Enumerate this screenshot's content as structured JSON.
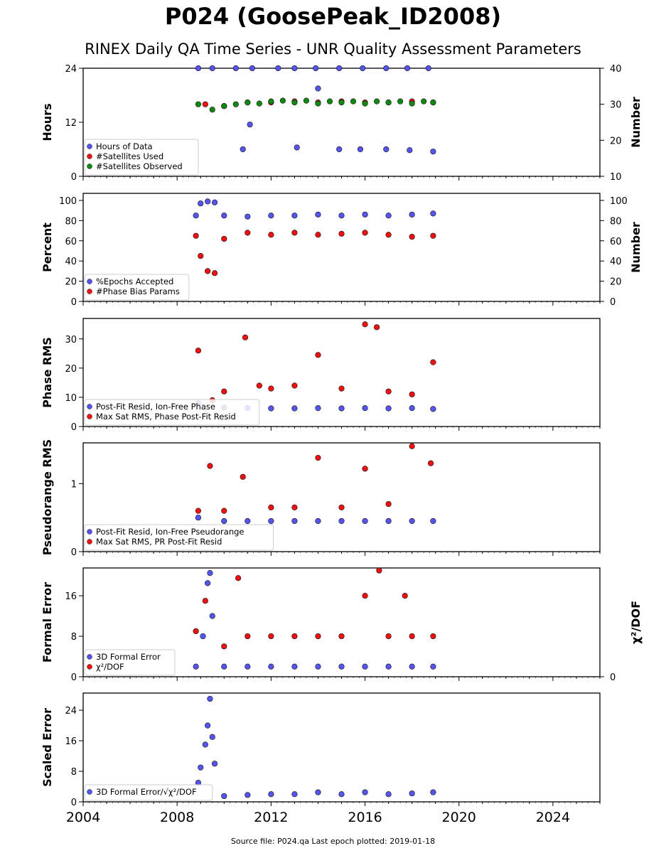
{
  "header": {
    "title": "P024 (GoosePeak_ID2008)",
    "subtitle": "RINEX Daily QA Time Series - UNR Quality Assessment Parameters"
  },
  "footer": {
    "text": "Source file: P024.qa Last epoch plotted: 2019-01-18"
  },
  "colors": {
    "blue": "#5555ee",
    "red": "#ee1111",
    "green": "#118811"
  },
  "chart_data": [
    {
      "type": "scatter",
      "ylabel": "Hours",
      "ylabel_right": "Number",
      "xlim": [
        2004,
        2026
      ],
      "ylim": [
        0,
        24
      ],
      "ylim_right": [
        10,
        40
      ],
      "yticks": [
        0,
        12,
        24
      ],
      "yticks_right": [
        10,
        20,
        30,
        40
      ],
      "legend": "lower-left",
      "series": [
        {
          "name": "Hours of Data",
          "color": "blue",
          "axis": "left",
          "x": [
            2008.9,
            2009.5,
            2010.5,
            2011.2,
            2012.3,
            2013.0,
            2013.9,
            2014.9,
            2015.9,
            2016.9,
            2017.8,
            2018.7
          ],
          "y": [
            24.0,
            24.0,
            24.0,
            24.0,
            24.0,
            24.0,
            24.0,
            24.0,
            24.0,
            24.0,
            24.0,
            24.0
          ],
          "lows": [
            {
              "x": 2010.8,
              "y": 6.0
            },
            {
              "x": 2011.1,
              "y": 11.5
            },
            {
              "x": 2013.1,
              "y": 6.4
            },
            {
              "x": 2014.0,
              "y": 19.5
            },
            {
              "x": 2014.9,
              "y": 6.0
            },
            {
              "x": 2015.8,
              "y": 6.0
            },
            {
              "x": 2016.9,
              "y": 6.0
            },
            {
              "x": 2017.9,
              "y": 5.8
            },
            {
              "x": 2018.9,
              "y": 5.5
            }
          ]
        },
        {
          "name": "#Satellites Used",
          "color": "red",
          "axis": "right",
          "x": [
            2009.2,
            2010.0,
            2011.0,
            2012.0,
            2013.0,
            2014.0,
            2015.0,
            2016.0,
            2017.0,
            2018.0,
            2018.9
          ],
          "y": [
            30.0,
            29.5,
            30.5,
            30.5,
            30.8,
            30.5,
            30.8,
            30.5,
            30.5,
            30.8,
            30.5
          ]
        },
        {
          "name": "#Satellites Observed",
          "color": "green",
          "axis": "right",
          "x": [
            2008.9,
            2009.5,
            2010.0,
            2010.5,
            2011.0,
            2011.5,
            2012.0,
            2012.5,
            2013.0,
            2013.5,
            2014.0,
            2014.5,
            2015.0,
            2015.5,
            2016.0,
            2016.5,
            2017.0,
            2017.5,
            2018.0,
            2018.5,
            2018.9
          ],
          "y": [
            30.0,
            28.5,
            29.5,
            30.0,
            30.5,
            30.2,
            30.8,
            31.0,
            30.5,
            31.0,
            30.2,
            30.8,
            30.5,
            30.8,
            30.2,
            30.8,
            30.5,
            30.8,
            30.2,
            30.8,
            30.5
          ]
        }
      ]
    },
    {
      "type": "scatter",
      "ylabel": "Percent",
      "ylabel_right": "Number",
      "xlim": [
        2004,
        2026
      ],
      "ylim": [
        0,
        107
      ],
      "ylim_right": [
        0,
        107
      ],
      "yticks": [
        0,
        20,
        40,
        60,
        80,
        100
      ],
      "yticks_right": [
        0,
        20,
        40,
        60,
        80,
        100
      ],
      "legend": "lower-left",
      "series": [
        {
          "name": "%Epochs Accepted",
          "color": "blue",
          "axis": "left",
          "x": [
            2008.8,
            2009.0,
            2009.3,
            2009.6,
            2010.0,
            2011.0,
            2012.0,
            2013.0,
            2014.0,
            2015.0,
            2016.0,
            2017.0,
            2018.0,
            2018.9
          ],
          "y": [
            85.0,
            97.0,
            99.0,
            98.0,
            85.0,
            84.0,
            85.0,
            85.0,
            86.0,
            85.0,
            86.0,
            85.0,
            86.0,
            87.0
          ]
        },
        {
          "name": "#Phase Bias Params",
          "color": "red",
          "axis": "right",
          "x": [
            2008.8,
            2009.0,
            2009.3,
            2009.6,
            2010.0,
            2011.0,
            2012.0,
            2013.0,
            2014.0,
            2015.0,
            2016.0,
            2017.0,
            2018.0,
            2018.9
          ],
          "y": [
            65.0,
            45.0,
            30.0,
            28.0,
            62.0,
            68.0,
            66.0,
            68.0,
            66.0,
            67.0,
            68.0,
            66.0,
            64.0,
            65.0
          ]
        }
      ]
    },
    {
      "type": "scatter",
      "ylabel": "Phase RMS",
      "xlim": [
        2004,
        2026
      ],
      "ylim": [
        0,
        37
      ],
      "yticks": [
        0,
        10,
        20,
        30
      ],
      "legend": "lower-left",
      "series": [
        {
          "name": "Post-Fit Resid, Ion-Free Phase",
          "color": "blue",
          "x": [
            2008.9,
            2010.0,
            2011.0,
            2012.0,
            2013.0,
            2014.0,
            2015.0,
            2016.0,
            2017.0,
            2018.0,
            2018.9
          ],
          "y": [
            8.0,
            6.5,
            6.3,
            6.2,
            6.2,
            6.3,
            6.2,
            6.3,
            6.2,
            6.3,
            6.0
          ]
        },
        {
          "name": "Max Sat RMS, Phase Post-Fit Resid",
          "color": "red",
          "x": [
            2008.9,
            2009.5,
            2010.0,
            2010.9,
            2011.5,
            2012.0,
            2013.0,
            2014.0,
            2015.0,
            2016.0,
            2016.5,
            2017.0,
            2018.0,
            2018.9
          ],
          "y": [
            26.0,
            9.0,
            12.0,
            30.5,
            14.0,
            13.0,
            14.0,
            24.5,
            13.0,
            35.0,
            34.0,
            12.0,
            11.0,
            22.0
          ]
        }
      ]
    },
    {
      "type": "scatter",
      "ylabel": "Pseudorange RMS",
      "xlim": [
        2004,
        2026
      ],
      "ylim": [
        0,
        1.6
      ],
      "yticks": [
        0,
        1
      ],
      "legend": "lower-left",
      "series": [
        {
          "name": "Post-Fit Resid, Ion-Free Pseudorange",
          "color": "blue",
          "x": [
            2008.9,
            2010.0,
            2011.0,
            2012.0,
            2013.0,
            2014.0,
            2015.0,
            2016.0,
            2017.0,
            2018.0,
            2018.9
          ],
          "y": [
            0.5,
            0.45,
            0.45,
            0.45,
            0.45,
            0.45,
            0.45,
            0.45,
            0.45,
            0.45,
            0.45
          ]
        },
        {
          "name": "Max Sat RMS, PR Post-Fit Resid",
          "color": "red",
          "x": [
            2008.9,
            2009.4,
            2010.0,
            2010.8,
            2012.0,
            2013.0,
            2014.0,
            2015.0,
            2016.0,
            2017.0,
            2018.0,
            2018.8
          ],
          "y": [
            0.6,
            1.26,
            0.6,
            1.1,
            0.65,
            0.65,
            1.38,
            0.65,
            1.22,
            0.7,
            1.55,
            1.3
          ]
        }
      ]
    },
    {
      "type": "scatter",
      "ylabel": "Formal Error",
      "ylabel_right": "χ²/DOF",
      "xlim": [
        2004,
        2026
      ],
      "ylim": [
        0,
        21.5
      ],
      "yticks": [
        0,
        8,
        16
      ],
      "yticks_right": [
        0
      ],
      "legend": "lower-left",
      "series": [
        {
          "name": "3D Formal Error",
          "color": "blue",
          "x": [
            2008.8,
            2009.1,
            2009.3,
            2009.4,
            2009.5,
            2010.0,
            2011.0,
            2012.0,
            2013.0,
            2014.0,
            2015.0,
            2016.0,
            2017.0,
            2018.0,
            2018.9
          ],
          "y": [
            2.0,
            8.0,
            18.5,
            20.5,
            12.0,
            2.0,
            2.0,
            2.0,
            2.0,
            2.0,
            2.0,
            2.0,
            2.0,
            2.0,
            2.0
          ]
        },
        {
          "name": "χ²/DOF",
          "color": "red",
          "x": [
            2008.8,
            2009.2,
            2010.0,
            2010.6,
            2011.0,
            2012.0,
            2013.0,
            2014.0,
            2015.0,
            2016.0,
            2016.6,
            2017.0,
            2017.7,
            2018.0,
            2018.9
          ],
          "y": [
            9.0,
            15.0,
            6.0,
            19.5,
            8.0,
            8.0,
            8.0,
            8.0,
            8.0,
            16.0,
            21.0,
            8.0,
            16.0,
            8.0,
            8.0
          ]
        }
      ]
    },
    {
      "type": "scatter",
      "ylabel": "Scaled Error",
      "xlim": [
        2004,
        2026
      ],
      "ylim": [
        0,
        28.5
      ],
      "yticks": [
        0,
        8,
        16,
        24
      ],
      "legend": "lower-left",
      "xticks": [
        2004,
        2008,
        2012,
        2016,
        2020,
        2024
      ],
      "series": [
        {
          "name": "3D Formal Error/√χ²/DOF",
          "color": "blue",
          "x": [
            2008.9,
            2009.0,
            2009.2,
            2009.3,
            2009.4,
            2009.5,
            2009.6,
            2010.0,
            2011.0,
            2012.0,
            2013.0,
            2014.0,
            2015.0,
            2016.0,
            2017.0,
            2018.0,
            2018.9
          ],
          "y": [
            5.0,
            9.0,
            15.0,
            20.0,
            27.0,
            17.0,
            10.0,
            1.5,
            1.8,
            2.0,
            2.0,
            2.5,
            2.0,
            2.5,
            2.0,
            2.2,
            2.5
          ]
        }
      ]
    }
  ]
}
